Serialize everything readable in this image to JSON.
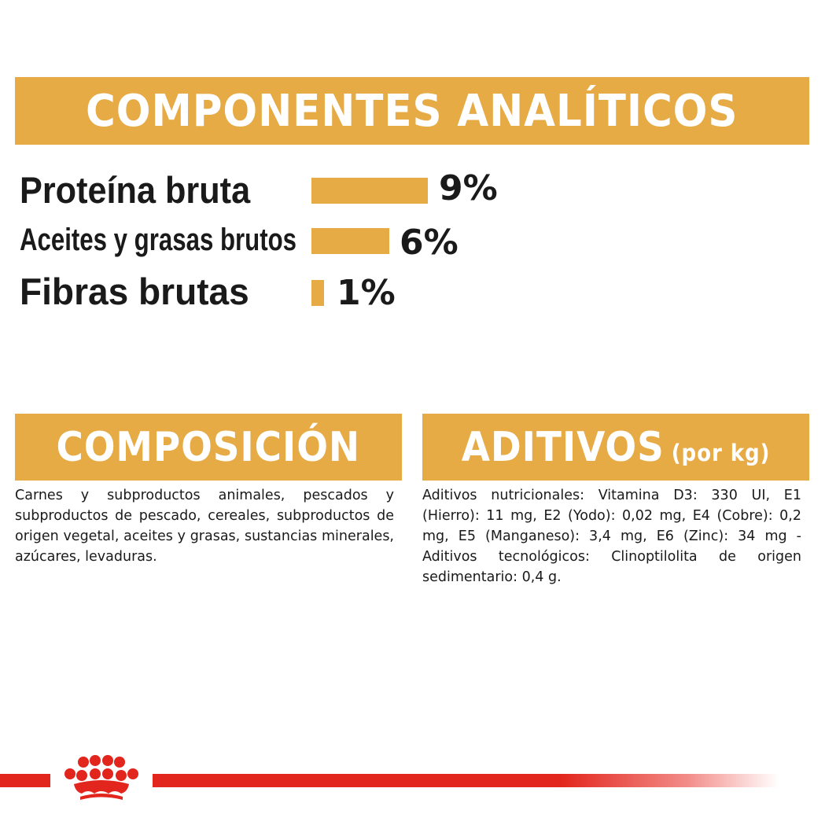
{
  "analytics": {
    "title": "COMPONENTES ANALÍTICOS",
    "items": [
      {
        "label": "Proteína bruta",
        "value": "9%",
        "percent": 9
      },
      {
        "label": "Aceites y grasas brutos",
        "value": "6%",
        "percent": 6
      },
      {
        "label": "Fibras brutas",
        "value": "1%",
        "percent": 1
      }
    ]
  },
  "composition": {
    "title": "COMPOSICIÓN",
    "text": "Carnes y subproductos animales, pescados y subproductos de pescado, cereales, subproductos de origen vegetal, aceites y grasas, sustancias minerales, azúcares, levaduras."
  },
  "additives": {
    "title": "ADITIVOS",
    "subtitle": "(por kg)",
    "text": "Aditivos nutricionales: Vitamina D3: 330 UI, E1 (Hierro): 11 mg, E2 (Yodo): 0,02 mg, E4 (Cobre): 0,2 mg, E5 (Manganeso): 3,4 mg, E6 (Zinc): 34 mg - Aditivos tecnológicos: Clinoptilolita de origen sedimentario: 0,4 g."
  },
  "colors": {
    "accent": "#e6ab45",
    "brand_red": "#e2261d",
    "text": "#1a1a1a"
  },
  "footer": {
    "logo_icon": "crown-icon"
  }
}
